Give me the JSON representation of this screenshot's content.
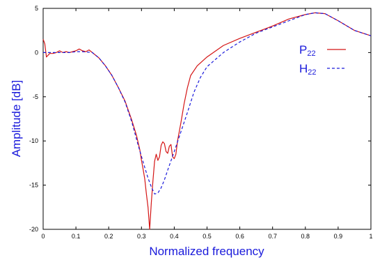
{
  "chart_data": {
    "type": "line",
    "xlabel": "Normalized frequency",
    "ylabel": "Amplitude [dB]",
    "xlim": [
      0,
      1
    ],
    "ylim": [
      -20,
      5
    ],
    "x_ticks": [
      "0",
      "0.1",
      "0.2",
      "0.3",
      "0.4",
      "0.5",
      "0.6",
      "0.7",
      "0.8",
      "0.9",
      "1"
    ],
    "y_ticks": [
      "-20",
      "-15",
      "-10",
      "-5",
      "0",
      "5"
    ],
    "grid": false,
    "legend_position": "top-right",
    "colors": {
      "axis_text": "#1a1adb",
      "p_line": "#d41414",
      "h_line": "#1a1adb",
      "frame": "#000000"
    },
    "series": [
      {
        "name": "P",
        "name_sub": "22",
        "style": "solid",
        "x": [
          0,
          0.005,
          0.01,
          0.02,
          0.03,
          0.04,
          0.05,
          0.06,
          0.07,
          0.08,
          0.09,
          0.1,
          0.11,
          0.12,
          0.13,
          0.14,
          0.15,
          0.17,
          0.19,
          0.21,
          0.23,
          0.25,
          0.27,
          0.285,
          0.295,
          0.3,
          0.305,
          0.31,
          0.315,
          0.32,
          0.325,
          0.33,
          0.335,
          0.34,
          0.345,
          0.35,
          0.355,
          0.36,
          0.365,
          0.37,
          0.375,
          0.38,
          0.385,
          0.39,
          0.395,
          0.4,
          0.405,
          0.41,
          0.42,
          0.43,
          0.44,
          0.45,
          0.47,
          0.5,
          0.55,
          0.6,
          0.65,
          0.7,
          0.75,
          0.8,
          0.83,
          0.86,
          0.9,
          0.95,
          1.0
        ],
        "y": [
          1.5,
          1.0,
          -0.5,
          -0.1,
          -0.1,
          0.0,
          0.2,
          0.0,
          0.1,
          0.0,
          0.1,
          0.2,
          0.4,
          0.2,
          0.1,
          0.3,
          0.0,
          -0.6,
          -1.5,
          -2.6,
          -4.0,
          -5.5,
          -7.6,
          -9.4,
          -11.0,
          -12.2,
          -13.2,
          -14.3,
          -16.0,
          -17.5,
          -20.0,
          -17.0,
          -14.5,
          -12.3,
          -11.5,
          -12.2,
          -11.8,
          -10.5,
          -10.1,
          -10.3,
          -11.2,
          -11.4,
          -10.6,
          -10.4,
          -11.8,
          -12.0,
          -11.5,
          -10.0,
          -8.0,
          -5.8,
          -4.0,
          -2.6,
          -1.5,
          -0.5,
          0.8,
          1.6,
          2.3,
          3.0,
          3.8,
          4.3,
          4.5,
          4.4,
          3.6,
          2.5,
          1.9
        ]
      },
      {
        "name": "H",
        "name_sub": "22",
        "style": "dashed",
        "x": [
          0,
          0.02,
          0.05,
          0.08,
          0.1,
          0.12,
          0.15,
          0.17,
          0.19,
          0.21,
          0.23,
          0.25,
          0.27,
          0.29,
          0.31,
          0.32,
          0.33,
          0.34,
          0.35,
          0.36,
          0.37,
          0.38,
          0.4,
          0.42,
          0.44,
          0.46,
          0.48,
          0.5,
          0.55,
          0.6,
          0.65,
          0.7,
          0.75,
          0.8,
          0.83,
          0.86,
          0.9,
          0.95,
          1.0
        ],
        "y": [
          0,
          0.0,
          0.0,
          0.0,
          0.1,
          0.1,
          0.0,
          -0.6,
          -1.5,
          -2.6,
          -4.0,
          -5.6,
          -7.8,
          -10.5,
          -13.0,
          -14.2,
          -15.2,
          -16.0,
          -15.9,
          -15.3,
          -14.4,
          -13.3,
          -11.2,
          -9.0,
          -6.8,
          -4.5,
          -2.8,
          -1.6,
          0.0,
          1.2,
          2.2,
          2.9,
          3.6,
          4.3,
          4.5,
          4.4,
          3.6,
          2.5,
          1.9
        ]
      }
    ]
  }
}
